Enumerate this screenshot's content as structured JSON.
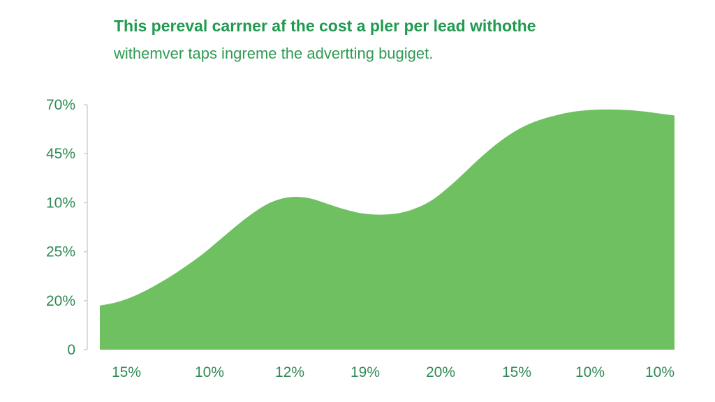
{
  "chart_data": {
    "type": "area",
    "title": "This pereval carrner af the cost a pler per lead withothe",
    "subtitle": "withemver taps ingreme the advertting bugiget.",
    "categories": [
      "15%",
      "10%",
      "12%",
      "19%",
      "20%",
      "15%",
      "10%",
      "10%"
    ],
    "y_tick_labels": [
      "70%",
      "45%",
      "10%",
      "25%",
      "20%",
      "0"
    ],
    "y_tick_positions": [
      5,
      4,
      3,
      2,
      1,
      0
    ],
    "ylim": [
      0,
      5
    ],
    "x": [
      0,
      0.2,
      0.4,
      0.6,
      0.8,
      1,
      1.2,
      1.4,
      1.6,
      1.8,
      2,
      2.2,
      2.4,
      2.6,
      2.8,
      3,
      3.2,
      3.4,
      3.6,
      3.8,
      4,
      4.2,
      4.4,
      4.6,
      4.8,
      5,
      5.2,
      5.4,
      5.6,
      5.8,
      6,
      6.2,
      6.4,
      6.6,
      6.8,
      7,
      7.2,
      7.4,
      7.6
    ],
    "values": [
      0.9,
      0.96,
      1.06,
      1.2,
      1.37,
      1.56,
      1.77,
      2.0,
      2.26,
      2.52,
      2.76,
      2.96,
      3.08,
      3.12,
      3.08,
      2.98,
      2.88,
      2.8,
      2.76,
      2.76,
      2.8,
      2.9,
      3.06,
      3.3,
      3.58,
      3.87,
      4.14,
      4.37,
      4.55,
      4.68,
      4.77,
      4.84,
      4.88,
      4.9,
      4.9,
      4.89,
      4.86,
      4.82,
      4.78
    ],
    "grid": false,
    "legend": "none",
    "colors": {
      "fill": "#6fc060",
      "axis": "#cfcfcf",
      "tick_text": "#2f8a55",
      "title": "#1f9a4e"
    }
  }
}
